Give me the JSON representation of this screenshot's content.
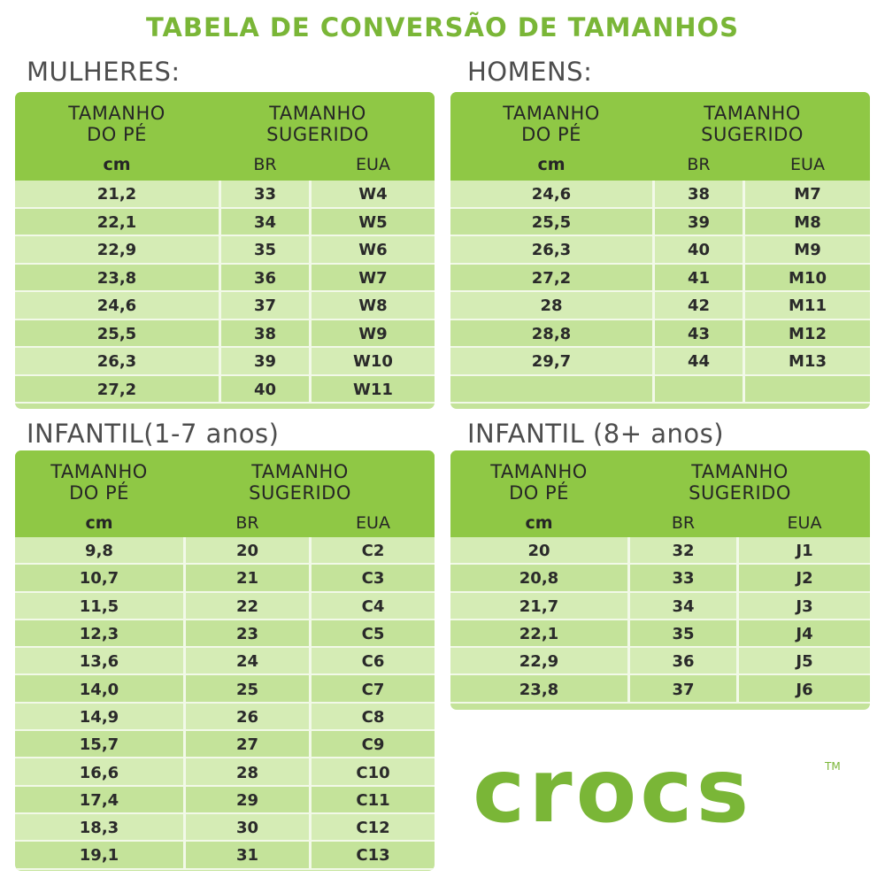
{
  "title": "TABELA DE CONVERSÃO DE TAMANHOS",
  "header": {
    "foot_size": "TAMANHO\nDO PÉ",
    "suggested_size": "TAMANHO\nSUGERIDO",
    "cm": "cm",
    "br": "BR",
    "eua": "EUA"
  },
  "sections": [
    {
      "id": "women",
      "label": "MULHERES:",
      "rows": [
        [
          "21,2",
          "33",
          "W4"
        ],
        [
          "22,1",
          "34",
          "W5"
        ],
        [
          "22,9",
          "35",
          "W6"
        ],
        [
          "23,8",
          "36",
          "W7"
        ],
        [
          "24,6",
          "37",
          "W8"
        ],
        [
          "25,5",
          "38",
          "W9"
        ],
        [
          "26,3",
          "39",
          "W10"
        ],
        [
          "27,2",
          "40",
          "W11"
        ]
      ]
    },
    {
      "id": "men",
      "label": "HOMENS:",
      "rows": [
        [
          "24,6",
          "38",
          "M7"
        ],
        [
          "25,5",
          "39",
          "M8"
        ],
        [
          "26,3",
          "40",
          "M9"
        ],
        [
          "27,2",
          "41",
          "M10"
        ],
        [
          "28",
          "42",
          "M11"
        ],
        [
          "28,8",
          "43",
          "M12"
        ],
        [
          "29,7",
          "44",
          "M13"
        ],
        [
          "",
          "",
          ""
        ]
      ]
    },
    {
      "id": "kids",
      "label": "INFANTIL(1-7 anos)",
      "rows": [
        [
          "9,8",
          "20",
          "C2"
        ],
        [
          "10,7",
          "21",
          "C3"
        ],
        [
          "11,5",
          "22",
          "C4"
        ],
        [
          "12,3",
          "23",
          "C5"
        ],
        [
          "13,6",
          "24",
          "C6"
        ],
        [
          "14,0",
          "25",
          "C7"
        ],
        [
          "14,9",
          "26",
          "C8"
        ],
        [
          "15,7",
          "27",
          "C9"
        ],
        [
          "16,6",
          "28",
          "C10"
        ],
        [
          "17,4",
          "29",
          "C11"
        ],
        [
          "18,3",
          "30",
          "C12"
        ],
        [
          "19,1",
          "31",
          "C13"
        ]
      ]
    },
    {
      "id": "youth",
      "label": "INFANTIL (8+ anos)",
      "rows": [
        [
          "20",
          "32",
          "J1"
        ],
        [
          "20,8",
          "33",
          "J2"
        ],
        [
          "21,7",
          "34",
          "J3"
        ],
        [
          "22,1",
          "35",
          "J4"
        ],
        [
          "22,9",
          "36",
          "J5"
        ],
        [
          "23,8",
          "37",
          "J6"
        ]
      ]
    }
  ],
  "logo": {
    "text": "crocs",
    "tm": "TM",
    "color": "#7ab637"
  },
  "colors": {
    "title_green": "#7ab637",
    "header_green": "#8fc845",
    "row_green": "#c4e39a"
  }
}
